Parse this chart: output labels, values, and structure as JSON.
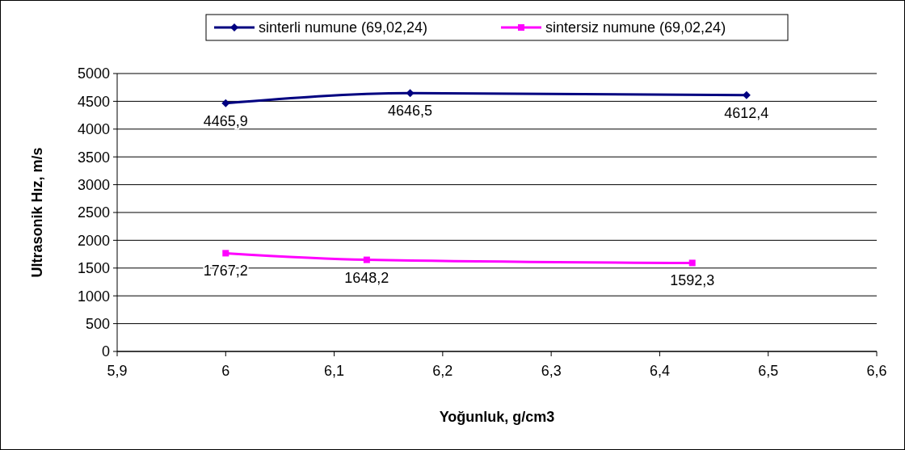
{
  "chart_data": {
    "type": "line",
    "xlabel": "Yoğunluk, g/cm3",
    "ylabel": "Ultrasonik Hız, m/s",
    "xlim": [
      5.9,
      6.6
    ],
    "xticks": [
      {
        "value": 5.9,
        "label": "5,9"
      },
      6,
      {
        "value": 6.1,
        "label": "6,1"
      },
      {
        "value": 6.2,
        "label": "6,2"
      },
      {
        "value": 6.3,
        "label": "6,3"
      },
      {
        "value": 6.4,
        "label": "6,4"
      },
      {
        "value": 6.5,
        "label": "6,5"
      },
      {
        "value": 6.6,
        "label": "6,6"
      }
    ],
    "ylim": [
      0,
      5000
    ],
    "yticks": [
      0,
      500,
      1000,
      1500,
      2000,
      2500,
      3000,
      3500,
      4000,
      4500,
      5000
    ],
    "grid": "y",
    "legend": "top",
    "line_style": "solid",
    "series": [
      {
        "name": "sinterli numune (69,02,24)",
        "color": "#000080",
        "marker": "diamond",
        "x": [
          6,
          6.17,
          6.48
        ],
        "values": [
          4465.9,
          4646.5,
          4612.4
        ],
        "value_labels": [
          "4465,9",
          "4646,5",
          "4612,4"
        ]
      },
      {
        "name": "sintersiz numune (69,02,24)",
        "color": "#ff00ff",
        "marker": "square",
        "x": [
          6,
          6.13,
          6.43
        ],
        "values": [
          1767.2,
          1648.2,
          1592.3
        ],
        "value_labels": [
          "1767,2",
          "1648,2",
          "1592,3"
        ]
      }
    ]
  }
}
